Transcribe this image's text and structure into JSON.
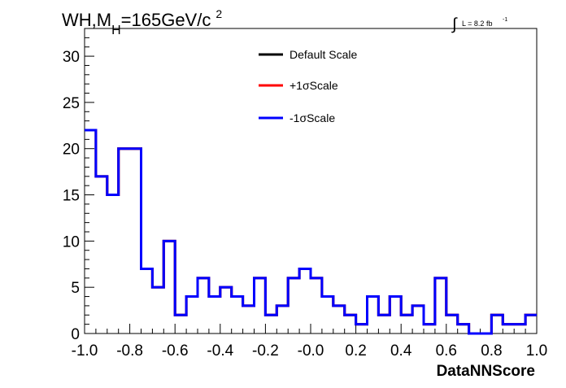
{
  "title_main": "WH,M",
  "title_sub": "H",
  "title_rest": "=165GeV/c",
  "title_sup": "2",
  "lumi": {
    "integral_symbol": "∫",
    "text": "L = 8.2 fb",
    "sup": "-1"
  },
  "legend": {
    "items": [
      {
        "label": "Default Scale",
        "color": "#000000"
      },
      {
        "label": "+1σScale",
        "color": "#ff0000"
      },
      {
        "label": "-1σScale",
        "color": "#0000ff"
      }
    ]
  },
  "chart_data": {
    "type": "line",
    "step": true,
    "xlabel": "DataNNScore",
    "ylabel": "",
    "xlim": [
      -1.0,
      1.0
    ],
    "ylim": [
      0,
      33
    ],
    "x_ticks": [
      -1.0,
      -0.8,
      -0.6,
      -0.4,
      -0.2,
      0.0,
      0.2,
      0.4,
      0.6,
      0.8,
      1.0
    ],
    "x_tick_labels": [
      "-1.0",
      "-0.8",
      "-0.6",
      "-0.4",
      "-0.2",
      "-0.0",
      "0.2",
      "0.4",
      "0.6",
      "0.8",
      "1.0"
    ],
    "y_ticks": [
      0,
      5,
      10,
      15,
      20,
      25,
      30
    ],
    "y_tick_labels": [
      "0",
      "5",
      "10",
      "15",
      "20",
      "25",
      "30"
    ],
    "bin_edges": [
      -1.0,
      -0.95,
      -0.9,
      -0.85,
      -0.8,
      -0.75,
      -0.7,
      -0.65,
      -0.6,
      -0.55,
      -0.5,
      -0.45,
      -0.4,
      -0.35,
      -0.3,
      -0.25,
      -0.2,
      -0.15,
      -0.1,
      -0.05,
      0.0,
      0.05,
      0.1,
      0.15,
      0.2,
      0.25,
      0.3,
      0.35,
      0.4,
      0.45,
      0.5,
      0.55,
      0.6,
      0.65,
      0.7,
      0.75,
      0.8,
      0.85,
      0.9,
      0.95,
      1.0
    ],
    "series": [
      {
        "name": "Default Scale",
        "color": "#000000",
        "values": [
          22,
          17,
          15,
          20,
          20,
          7,
          5,
          10,
          2,
          4,
          6,
          4,
          5,
          4,
          3,
          6,
          2,
          3,
          6,
          7,
          6,
          4,
          3,
          2,
          1,
          4,
          2,
          4,
          2,
          3,
          1,
          6,
          2,
          1,
          0,
          0,
          2,
          1,
          1,
          2
        ]
      },
      {
        "name": "+1σScale",
        "color": "#ff0000",
        "values": [
          22,
          17,
          15,
          20,
          20,
          7,
          5,
          10,
          2,
          4,
          6,
          4,
          5,
          4,
          3,
          6,
          2,
          3,
          6,
          7,
          6,
          4,
          3,
          2,
          1,
          4,
          2,
          4,
          2,
          3,
          1,
          6,
          2,
          1,
          0,
          0,
          2,
          1,
          1,
          2
        ]
      },
      {
        "name": "-1σScale",
        "color": "#0000ff",
        "values": [
          22,
          17,
          15,
          20,
          20,
          7,
          5,
          10,
          2,
          4,
          6,
          4,
          5,
          4,
          3,
          6,
          2,
          3,
          6,
          7,
          6,
          4,
          3,
          2,
          1,
          4,
          2,
          4,
          2,
          3,
          1,
          6,
          2,
          1,
          0,
          0,
          2,
          1,
          1,
          2
        ]
      }
    ]
  }
}
